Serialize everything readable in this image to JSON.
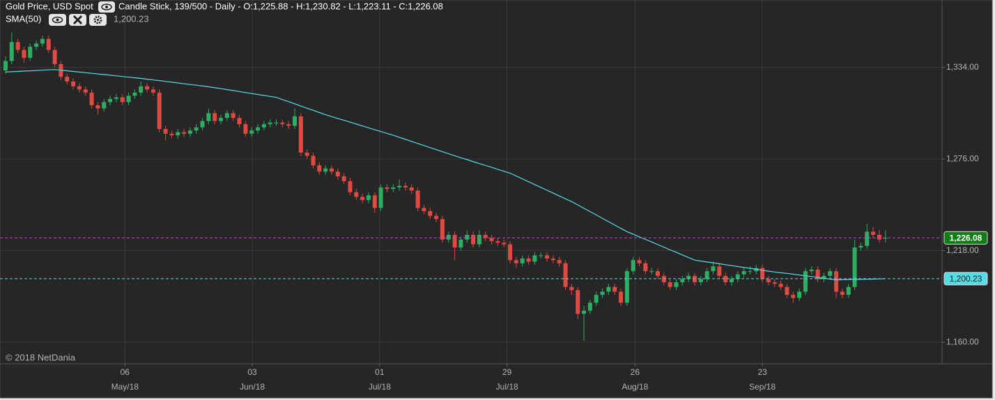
{
  "chart_data": {
    "type": "candlestick",
    "title": "Gold Price, USD Spot",
    "subtitle": "Candle Stick, 139/500 - Daily - O:1,225.88 - H:1,230.82 - L:1,223.11 - C:1,226.08",
    "annotation": "© 2018 NetDania",
    "up_color": "#2eae62",
    "down_color": "#df4a42",
    "xlim": [
      -0.9,
      152.2
    ],
    "xticks": [
      {
        "value": 19.4,
        "label": "06"
      },
      {
        "value": 40.1,
        "label": "03"
      },
      {
        "value": 60.8,
        "label": "01"
      },
      {
        "value": 81.5,
        "label": "29"
      },
      {
        "value": 102.3,
        "label": "26"
      },
      {
        "value": 123.0,
        "label": "23"
      }
    ],
    "xtick_months": [
      "May/18",
      "Jun/18",
      "Jul/18",
      "Jul/18",
      "Aug/18",
      "Sep/18"
    ],
    "ylim": [
      1146.4,
      1376.6
    ],
    "yticks": [
      {
        "value": 1334,
        "label": "1,334.00"
      },
      {
        "value": 1276,
        "label": "1,276.00"
      },
      {
        "value": 1218,
        "label": "1,218.00"
      },
      {
        "value": 1160,
        "label": "1,160.00"
      }
    ],
    "grid": true,
    "last_price": {
      "value": 1226.08,
      "label": "1,226.08",
      "color": "#c040c8",
      "badge_color": "#0e7d12"
    },
    "candles": [
      [
        1332,
        1341,
        1330,
        1338
      ],
      [
        1338,
        1356,
        1336,
        1350
      ],
      [
        1350,
        1352,
        1343,
        1345
      ],
      [
        1345,
        1347,
        1337,
        1340
      ],
      [
        1340,
        1349,
        1338,
        1347
      ],
      [
        1347,
        1351,
        1345,
        1349
      ],
      [
        1349,
        1354,
        1347,
        1352
      ],
      [
        1352,
        1354,
        1343,
        1345
      ],
      [
        1345,
        1347,
        1334,
        1336
      ],
      [
        1336,
        1338,
        1326,
        1328
      ],
      [
        1328,
        1330,
        1323,
        1325
      ],
      [
        1325,
        1327,
        1320,
        1322
      ],
      [
        1322,
        1324,
        1318,
        1320
      ],
      [
        1320,
        1322,
        1316,
        1318
      ],
      [
        1318,
        1320,
        1308,
        1310
      ],
      [
        1310,
        1312,
        1304,
        1308
      ],
      [
        1308,
        1314,
        1306,
        1312
      ],
      [
        1312,
        1316,
        1310,
        1314
      ],
      [
        1314,
        1317,
        1312,
        1315
      ],
      [
        1315,
        1317,
        1310,
        1312
      ],
      [
        1312,
        1318,
        1310,
        1316
      ],
      [
        1316,
        1320,
        1314,
        1318
      ],
      [
        1318,
        1325,
        1316,
        1322
      ],
      [
        1322,
        1324,
        1318,
        1320
      ],
      [
        1320,
        1322,
        1316,
        1318
      ],
      [
        1318,
        1320,
        1293,
        1295
      ],
      [
        1295,
        1297,
        1288,
        1292
      ],
      [
        1292,
        1294,
        1289,
        1291
      ],
      [
        1291,
        1295,
        1289,
        1293
      ],
      [
        1293,
        1295,
        1290,
        1292
      ],
      [
        1292,
        1296,
        1290,
        1294
      ],
      [
        1294,
        1298,
        1292,
        1296
      ],
      [
        1296,
        1302,
        1294,
        1300
      ],
      [
        1300,
        1308,
        1298,
        1305
      ],
      [
        1305,
        1307,
        1298,
        1300
      ],
      [
        1300,
        1304,
        1298,
        1302
      ],
      [
        1302,
        1307,
        1300,
        1305
      ],
      [
        1305,
        1307,
        1300,
        1302
      ],
      [
        1302,
        1304,
        1296,
        1298
      ],
      [
        1298,
        1300,
        1290,
        1292
      ],
      [
        1292,
        1296,
        1290,
        1294
      ],
      [
        1294,
        1298,
        1292,
        1296
      ],
      [
        1296,
        1300,
        1294,
        1298
      ],
      [
        1298,
        1301,
        1296,
        1299
      ],
      [
        1299,
        1301,
        1297,
        1299
      ],
      [
        1299,
        1301,
        1296,
        1298
      ],
      [
        1298,
        1300,
        1295,
        1297
      ],
      [
        1297,
        1308,
        1295,
        1303
      ],
      [
        1303,
        1305,
        1278,
        1280
      ],
      [
        1280,
        1282,
        1276,
        1278
      ],
      [
        1278,
        1280,
        1270,
        1272
      ],
      [
        1272,
        1274,
        1266,
        1268
      ],
      [
        1268,
        1272,
        1266,
        1270
      ],
      [
        1270,
        1272,
        1266,
        1268
      ],
      [
        1268,
        1270,
        1263,
        1265
      ],
      [
        1265,
        1267,
        1260,
        1262
      ],
      [
        1262,
        1264,
        1253,
        1255
      ],
      [
        1255,
        1257,
        1250,
        1252
      ],
      [
        1252,
        1254,
        1248,
        1250
      ],
      [
        1250,
        1255,
        1248,
        1253
      ],
      [
        1253,
        1255,
        1242,
        1245
      ],
      [
        1245,
        1260,
        1243,
        1258
      ],
      [
        1258,
        1260,
        1255,
        1257
      ],
      [
        1257,
        1260,
        1255,
        1258
      ],
      [
        1258,
        1263,
        1256,
        1259
      ],
      [
        1259,
        1261,
        1256,
        1258
      ],
      [
        1258,
        1260,
        1254,
        1256
      ],
      [
        1256,
        1258,
        1243,
        1245
      ],
      [
        1245,
        1247,
        1241,
        1243
      ],
      [
        1243,
        1245,
        1238,
        1240
      ],
      [
        1240,
        1242,
        1236,
        1238
      ],
      [
        1238,
        1240,
        1223,
        1225
      ],
      [
        1225,
        1230,
        1223,
        1228
      ],
      [
        1228,
        1230,
        1212,
        1220
      ],
      [
        1220,
        1227,
        1218,
        1225
      ],
      [
        1225,
        1231,
        1223,
        1228
      ],
      [
        1228,
        1230,
        1220,
        1222
      ],
      [
        1222,
        1231,
        1220,
        1228
      ],
      [
        1228,
        1230,
        1224,
        1226
      ],
      [
        1226,
        1228,
        1222,
        1224
      ],
      [
        1224,
        1226,
        1221,
        1223
      ],
      [
        1223,
        1225,
        1220,
        1222
      ],
      [
        1222,
        1224,
        1210,
        1212
      ],
      [
        1212,
        1214,
        1207,
        1210
      ],
      [
        1210,
        1215,
        1208,
        1213
      ],
      [
        1213,
        1215,
        1209,
        1211
      ],
      [
        1211,
        1217,
        1209,
        1215
      ],
      [
        1215,
        1217,
        1213,
        1215
      ],
      [
        1215,
        1217,
        1211,
        1213
      ],
      [
        1213,
        1215,
        1210,
        1212
      ],
      [
        1212,
        1214,
        1208,
        1210
      ],
      [
        1210,
        1212,
        1193,
        1195
      ],
      [
        1195,
        1197,
        1190,
        1193
      ],
      [
        1193,
        1195,
        1175,
        1178
      ],
      [
        1178,
        1183,
        1161,
        1180
      ],
      [
        1180,
        1187,
        1178,
        1185
      ],
      [
        1185,
        1192,
        1183,
        1190
      ],
      [
        1190,
        1194,
        1188,
        1192
      ],
      [
        1192,
        1197,
        1190,
        1195
      ],
      [
        1195,
        1197,
        1190,
        1192
      ],
      [
        1192,
        1194,
        1183,
        1185
      ],
      [
        1185,
        1207,
        1183,
        1205
      ],
      [
        1205,
        1214,
        1203,
        1212
      ],
      [
        1212,
        1214,
        1208,
        1210
      ],
      [
        1210,
        1212,
        1203,
        1205
      ],
      [
        1205,
        1207,
        1203,
        1205
      ],
      [
        1205,
        1207,
        1200,
        1202
      ],
      [
        1202,
        1204,
        1196,
        1198
      ],
      [
        1198,
        1200,
        1193,
        1195
      ],
      [
        1195,
        1200,
        1193,
        1198
      ],
      [
        1198,
        1202,
        1196,
        1200
      ],
      [
        1200,
        1204,
        1198,
        1202
      ],
      [
        1202,
        1204,
        1196,
        1198
      ],
      [
        1198,
        1202,
        1196,
        1200
      ],
      [
        1200,
        1207,
        1198,
        1205
      ],
      [
        1205,
        1211,
        1203,
        1208
      ],
      [
        1208,
        1210,
        1200,
        1202
      ],
      [
        1202,
        1204,
        1196,
        1198
      ],
      [
        1198,
        1202,
        1196,
        1200
      ],
      [
        1200,
        1205,
        1198,
        1203
      ],
      [
        1203,
        1207,
        1201,
        1205
      ],
      [
        1205,
        1208,
        1203,
        1205
      ],
      [
        1205,
        1209,
        1203,
        1207
      ],
      [
        1207,
        1209,
        1198,
        1200
      ],
      [
        1200,
        1202,
        1196,
        1198
      ],
      [
        1198,
        1200,
        1195,
        1197
      ],
      [
        1197,
        1199,
        1193,
        1195
      ],
      [
        1195,
        1197,
        1188,
        1190
      ],
      [
        1190,
        1192,
        1185,
        1188
      ],
      [
        1188,
        1194,
        1186,
        1192
      ],
      [
        1192,
        1207,
        1190,
        1205
      ],
      [
        1205,
        1208,
        1203,
        1206
      ],
      [
        1206,
        1208,
        1198,
        1200
      ],
      [
        1200,
        1204,
        1198,
        1202
      ],
      [
        1202,
        1207,
        1200,
        1205
      ],
      [
        1205,
        1207,
        1188,
        1192
      ],
      [
        1192,
        1194,
        1188,
        1190
      ],
      [
        1190,
        1197,
        1188,
        1195
      ],
      [
        1195,
        1225,
        1193,
        1220
      ],
      [
        1220,
        1223,
        1218,
        1221
      ],
      [
        1221,
        1235,
        1219,
        1230
      ],
      [
        1230,
        1233,
        1226,
        1228
      ],
      [
        1228,
        1231,
        1223,
        1225
      ],
      [
        1225.88,
        1230.82,
        1223.11,
        1226.08
      ]
    ],
    "sma": {
      "name": "SMA(50)",
      "color": "#55dde6",
      "last": {
        "value": 1200.23,
        "label": "1,200.23"
      },
      "values": [
        1331.0,
        1331.2,
        1331.4,
        1331.6,
        1331.8,
        1332.0,
        1332.2,
        1332.4,
        1332.6,
        1332.2,
        1331.8,
        1331.4,
        1331.0,
        1330.6,
        1330.2,
        1329.8,
        1329.4,
        1329.0,
        1328.6,
        1328.2,
        1327.8,
        1327.4,
        1327.0,
        1326.5,
        1326.0,
        1325.6,
        1325.1,
        1324.6,
        1324.1,
        1323.6,
        1323.1,
        1322.7,
        1322.2,
        1321.7,
        1321.1,
        1320.5,
        1319.9,
        1319.3,
        1318.7,
        1318.0,
        1317.4,
        1316.8,
        1316.2,
        1315.6,
        1315.0,
        1313.6,
        1312.3,
        1310.9,
        1309.5,
        1308.1,
        1306.8,
        1305.4,
        1304.0,
        1302.8,
        1301.6,
        1300.5,
        1299.3,
        1298.1,
        1296.9,
        1295.7,
        1294.5,
        1293.4,
        1292.2,
        1291.0,
        1289.7,
        1288.4,
        1287.1,
        1285.8,
        1284.5,
        1283.2,
        1281.9,
        1280.6,
        1279.3,
        1278.0,
        1276.8,
        1275.6,
        1274.3,
        1273.1,
        1271.9,
        1270.7,
        1269.4,
        1268.2,
        1267.0,
        1265.2,
        1263.4,
        1261.6,
        1259.8,
        1258.0,
        1256.2,
        1254.4,
        1252.6,
        1250.8,
        1249.0,
        1246.9,
        1244.8,
        1242.7,
        1240.6,
        1238.4,
        1236.3,
        1234.2,
        1232.1,
        1230.0,
        1228.4,
        1226.7,
        1225.1,
        1223.5,
        1221.8,
        1220.2,
        1218.5,
        1216.9,
        1215.3,
        1213.6,
        1212.0,
        1211.4,
        1210.8,
        1210.3,
        1209.7,
        1209.1,
        1208.5,
        1207.9,
        1207.3,
        1206.8,
        1206.2,
        1205.6,
        1205.0,
        1204.5,
        1204.0,
        1203.6,
        1203.1,
        1202.6,
        1202.1,
        1201.6,
        1201.0,
        1200.5,
        1200.0,
        1199.5,
        1199.6,
        1199.7,
        1199.8,
        1199.8,
        1199.9,
        1200.0,
        1200.1,
        1200.23
      ]
    }
  }
}
